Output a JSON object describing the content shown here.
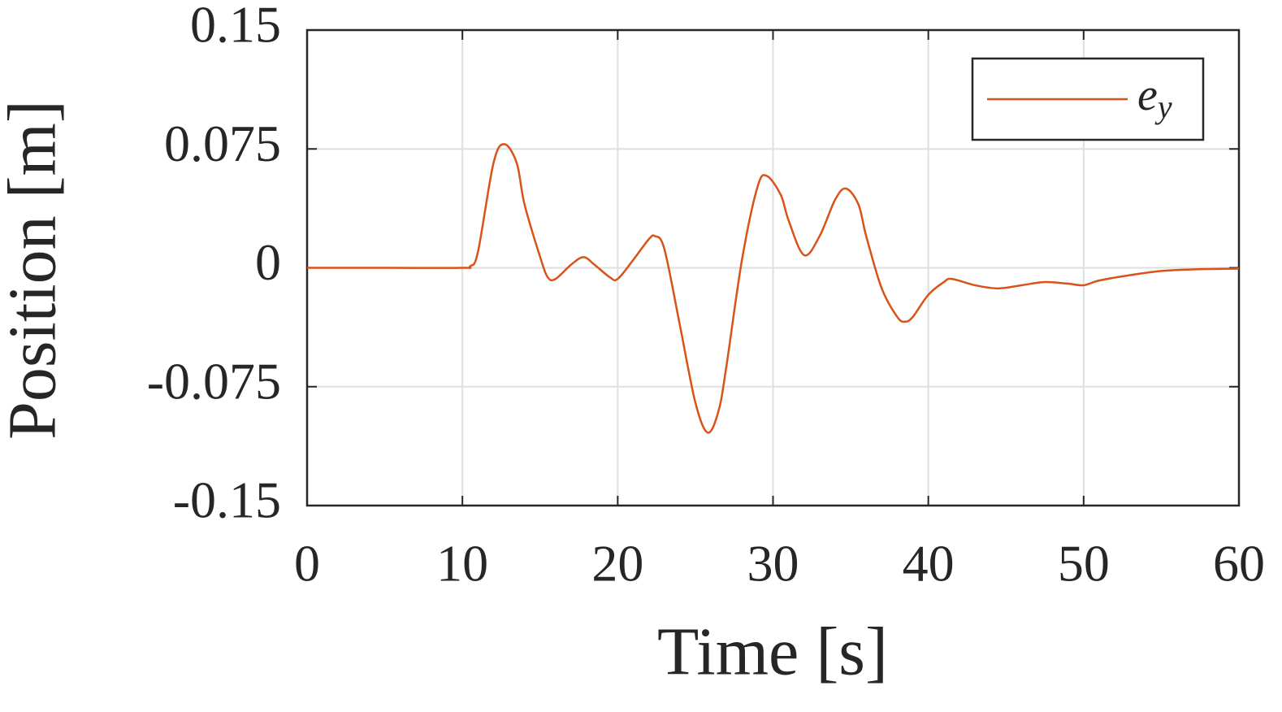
{
  "chart_data": {
    "type": "line",
    "xlabel": "Time [s]",
    "ylabel": "Position [m]",
    "x": [
      0,
      5,
      10,
      10.5,
      11,
      12,
      12.7,
      13.5,
      14,
      15,
      15.5,
      16,
      17,
      17.8,
      18.5,
      19.5,
      20,
      21,
      22,
      22.4,
      23,
      24,
      25,
      25.8,
      26.5,
      27,
      28,
      29,
      29.6,
      30.5,
      31,
      32,
      33,
      34,
      34.7,
      35.5,
      36,
      37,
      38,
      38.5,
      39,
      40,
      41,
      41.5,
      43,
      44.5,
      46,
      47.5,
      49,
      50,
      51,
      53,
      55,
      57,
      60
    ],
    "series": [
      {
        "name": "ey",
        "color": "#d95319",
        "values": [
          0,
          0,
          0,
          0.001,
          0.01,
          0.066,
          0.078,
          0.066,
          0.04,
          0.007,
          -0.006,
          -0.007,
          0.002,
          0.0067,
          0.002,
          -0.006,
          -0.007,
          0.005,
          0.018,
          0.02,
          0.012,
          -0.036,
          -0.085,
          -0.104,
          -0.09,
          -0.062,
          0.005,
          0.051,
          0.058,
          0.046,
          0.03,
          0.008,
          0.02,
          0.043,
          0.05,
          0.04,
          0.02,
          -0.013,
          -0.031,
          -0.034,
          -0.031,
          -0.017,
          -0.009,
          -0.007,
          -0.011,
          -0.013,
          -0.011,
          -0.009,
          -0.01,
          -0.011,
          -0.008,
          -0.0046,
          -0.002,
          -0.001,
          -0.0005
        ]
      }
    ],
    "xlim": [
      0,
      60
    ],
    "ylim": [
      -0.15,
      0.15
    ],
    "xticks": [
      0,
      10,
      20,
      30,
      40,
      50,
      60
    ],
    "yticks": [
      -0.15,
      -0.075,
      0,
      0.075,
      0.15
    ],
    "grid": true,
    "legend": "upper right"
  }
}
